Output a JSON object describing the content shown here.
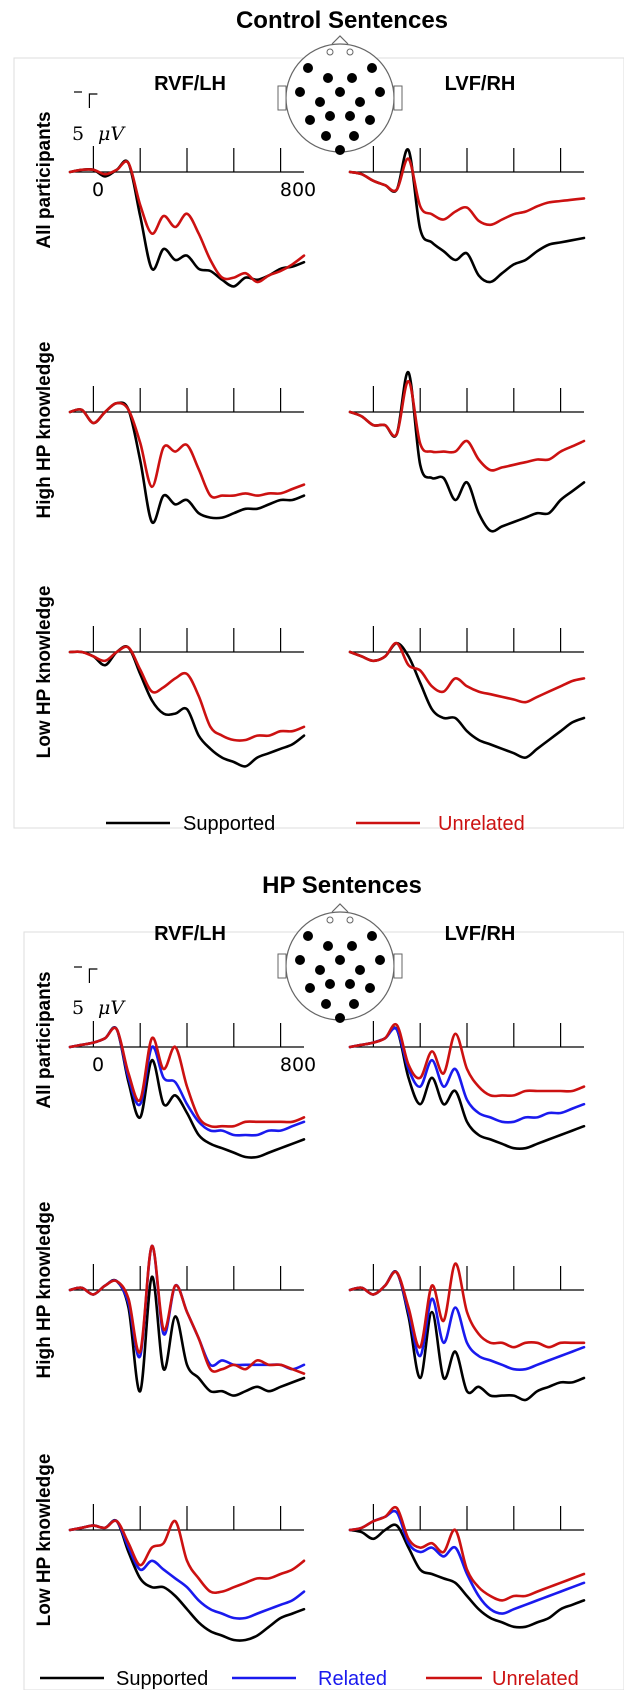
{
  "chart_data": [
    {
      "type": "line",
      "title": "Control Sentences",
      "columns": [
        "RVF/LH",
        "LVF/RH"
      ],
      "rows": [
        "All participants",
        "High HP knowledge",
        "Low HP knowledge"
      ],
      "x_tick_labels": [
        "0",
        "800"
      ],
      "scale_label": "5",
      "scale_unit": "μV",
      "series": [
        {
          "name": "Supported",
          "color": "#000000"
        },
        {
          "name": "Unrelated",
          "color": "#cc1111"
        }
      ],
      "x_ms": [
        -100,
        -50,
        0,
        50,
        100,
        150,
        200,
        250,
        300,
        350,
        400,
        450,
        500,
        550,
        600,
        650,
        700,
        750,
        800,
        850,
        900
      ],
      "panels": [
        {
          "row": 0,
          "col": 0,
          "values": {
            "Supported": [
              0,
              1,
              1,
              -2,
              1,
              4,
              -20,
              -44,
              -35,
              -40,
              -38,
              -44,
              -45,
              -49,
              -52,
              -48,
              -49,
              -47,
              -44,
              -43,
              -41
            ],
            "Unrelated": [
              0,
              1,
              1,
              -1,
              1,
              4,
              -15,
              -28,
              -20,
              -25,
              -19,
              -28,
              -40,
              -48,
              -48,
              -46,
              -50,
              -47,
              -45,
              -42,
              -38
            ]
          }
        },
        {
          "row": 0,
          "col": 1,
          "values": {
            "Supported": [
              0,
              -1,
              -4,
              -6,
              -8,
              10,
              -26,
              -32,
              -36,
              -40,
              -37,
              -47,
              -50,
              -46,
              -42,
              -40,
              -36,
              -33,
              -32,
              -31,
              -30
            ]
          },
          "_u": 0
        },
        {
          "row": 1,
          "col": 0,
          "values": {
            "Supported": [
              0,
              1,
              -5,
              0,
              4,
              1,
              -22,
              -50,
              -38,
              -42,
              -40,
              -46,
              -48,
              -48,
              -46,
              -44,
              -44,
              -42,
              -40,
              -40,
              -38
            ],
            "Unrelated": [
              0,
              1,
              -5,
              0,
              4,
              1,
              -14,
              -34,
              -16,
              -18,
              -15,
              -26,
              -38,
              -38,
              -38,
              -37,
              -38,
              -37,
              -37,
              -35,
              -33
            ]
          }
        },
        {
          "row": 1,
          "col": 1,
          "values": {
            "Supported": [
              0,
              -2,
              -6,
              -6,
              -10,
              18,
              -24,
              -30,
              -30,
              -40,
              -32,
              -46,
              -54,
              -52,
              -50,
              -48,
              -46,
              -46,
              -40,
              -36,
              -32
            ]
          }
        },
        {
          "row": 2,
          "col": 0,
          "values": {
            "Supported": [
              0,
              0,
              -2,
              -6,
              0,
              2,
              -10,
              -22,
              -28,
              -28,
              -26,
              -38,
              -44,
              -48,
              -50,
              -52,
              -48,
              -46,
              -44,
              -42,
              -38
            ],
            "Unrelated": [
              0,
              0,
              -2,
              -4,
              0,
              2,
              -8,
              -18,
              -16,
              -12,
              -10,
              -20,
              -34,
              -38,
              -40,
              -40,
              -38,
              -38,
              -36,
              -36,
              -34
            ]
          }
        },
        {
          "row": 2,
          "col": 1,
          "values": {
            "Supported": [
              0,
              -2,
              -4,
              -2,
              4,
              -2,
              -14,
              -26,
              -30,
              -30,
              -36,
              -40,
              -42,
              -44,
              -46,
              -48,
              -44,
              -40,
              -36,
              -32,
              -30
            ]
          }
        }
      ]
    },
    {
      "type": "line",
      "title": "HP Sentences",
      "columns": [
        "RVF/LH",
        "LVF/RH"
      ],
      "rows": [
        "All participants",
        "High HP knowledge",
        "Low HP knowledge"
      ],
      "x_tick_labels": [
        "0",
        "800"
      ],
      "scale_label": "5",
      "scale_unit": "μV",
      "series": [
        {
          "name": "Supported",
          "color": "#000000"
        },
        {
          "name": "Related",
          "color": "#1a1aee"
        },
        {
          "name": "Unrelated",
          "color": "#cc1111"
        }
      ],
      "x_ms": [
        -100,
        -50,
        0,
        50,
        100,
        150,
        200,
        250,
        300,
        350,
        400,
        450,
        500,
        550,
        600,
        650,
        700,
        750,
        800,
        850,
        900
      ],
      "panels": [
        {
          "row": 0,
          "col": 0,
          "values": {
            "Supported": [
              0,
              1,
              2,
              4,
              8,
              -16,
              -32,
              -6,
              -26,
              -22,
              -30,
              -40,
              -44,
              -46,
              -48,
              -50,
              -50,
              -48,
              -46,
              -44,
              -42
            ],
            "Related": [
              0,
              1,
              2,
              4,
              8,
              -14,
              -26,
              0,
              -14,
              -16,
              -26,
              -34,
              -38,
              -38,
              -40,
              -40,
              -40,
              -38,
              -38,
              -36,
              -34
            ],
            "Unrelated": [
              0,
              1,
              2,
              4,
              8,
              -12,
              -24,
              4,
              -10,
              0,
              -18,
              -32,
              -36,
              -36,
              -36,
              -34,
              -34,
              -34,
              -34,
              -34,
              -32
            ]
          }
        },
        {
          "row": 0,
          "col": 1,
          "values": {
            "Supported": [
              0,
              1,
              2,
              4,
              8,
              -14,
              -26,
              -14,
              -26,
              -20,
              -34,
              -40,
              -42,
              -44,
              -46,
              -46,
              -44,
              -42,
              -40,
              -38,
              -36
            ],
            "Related": [
              0,
              1,
              2,
              4,
              8,
              -10,
              -18,
              -6,
              -18,
              -10,
              -24,
              -30,
              -32,
              -34,
              -34,
              -32,
              -32,
              -30,
              -30,
              -28,
              -26
            ],
            "Unrelated": [
              0,
              1,
              2,
              4,
              10,
              -8,
              -14,
              -2,
              -12,
              6,
              -10,
              -18,
              -22,
              -22,
              -22,
              -20,
              -20,
              -20,
              -20,
              -20,
              -18
            ]
          }
        },
        {
          "row": 1,
          "col": 0,
          "values": {
            "Supported": [
              0,
              1,
              -2,
              2,
              4,
              -8,
              -46,
              6,
              -36,
              -12,
              -34,
              -40,
              -46,
              -46,
              -48,
              -46,
              -44,
              -46,
              -44,
              -42,
              -40
            ],
            "Related": [
              0,
              1,
              -2,
              2,
              4,
              -6,
              -30,
              20,
              -20,
              2,
              -10,
              -22,
              -34,
              -32,
              -34,
              -34,
              -34,
              -34,
              -34,
              -36,
              -34
            ],
            "Unrelated": [
              0,
              1,
              -2,
              2,
              4,
              -4,
              -28,
              20,
              -18,
              2,
              -10,
              -22,
              -36,
              -36,
              -34,
              -36,
              -32,
              -34,
              -34,
              -36,
              -38
            ]
          }
        },
        {
          "row": 1,
          "col": 1,
          "values": {
            "Supported": [
              0,
              1,
              -2,
              2,
              8,
              -12,
              -40,
              -10,
              -40,
              -28,
              -46,
              -44,
              -48,
              -48,
              -48,
              -50,
              -46,
              -44,
              -42,
              -42,
              -40
            ],
            "Related": [
              0,
              1,
              -2,
              2,
              8,
              -10,
              -30,
              -4,
              -24,
              -8,
              -24,
              -30,
              -32,
              -34,
              -36,
              -36,
              -34,
              -32,
              -30,
              -28,
              -26
            ],
            "Unrelated": [
              0,
              1,
              -2,
              2,
              8,
              -8,
              -26,
              2,
              -14,
              12,
              -10,
              -20,
              -24,
              -24,
              -26,
              -24,
              -24,
              -26,
              -24,
              -24,
              -24
            ]
          }
        },
        {
          "row": 2,
          "col": 0,
          "values": {
            "Supported": [
              0,
              1,
              2,
              1,
              4,
              -10,
              -22,
              -26,
              -26,
              -30,
              -36,
              -42,
              -46,
              -48,
              -50,
              -50,
              -48,
              -44,
              -40,
              -38,
              -36
            ],
            "Related": [
              0,
              1,
              2,
              1,
              4,
              -8,
              -18,
              -14,
              -18,
              -22,
              -26,
              -32,
              -36,
              -38,
              -40,
              -40,
              -38,
              -36,
              -34,
              -32,
              -28
            ],
            "Unrelated": [
              0,
              1,
              2,
              1,
              4,
              -6,
              -16,
              -8,
              -6,
              4,
              -14,
              -22,
              -28,
              -28,
              -26,
              -24,
              -22,
              -22,
              -20,
              -18,
              -14
            ]
          }
        },
        {
          "row": 2,
          "col": 1,
          "values": {
            "Supported": [
              0,
              -1,
              -4,
              0,
              2,
              -8,
              -18,
              -20,
              -22,
              -24,
              -30,
              -36,
              -40,
              -42,
              -44,
              -44,
              -42,
              -40,
              -36,
              -34,
              -32
            ],
            "Related": [
              0,
              1,
              4,
              6,
              8,
              -6,
              -10,
              -8,
              -12,
              -8,
              -20,
              -30,
              -36,
              -38,
              -36,
              -34,
              -32,
              -30,
              -28,
              -26,
              -24
            ],
            "Unrelated": [
              0,
              1,
              4,
              6,
              10,
              -4,
              -8,
              -6,
              -10,
              0,
              -18,
              -26,
              -30,
              -32,
              -30,
              -30,
              -28,
              -26,
              -24,
              -22,
              -20
            ]
          }
        }
      ]
    }
  ]
}
